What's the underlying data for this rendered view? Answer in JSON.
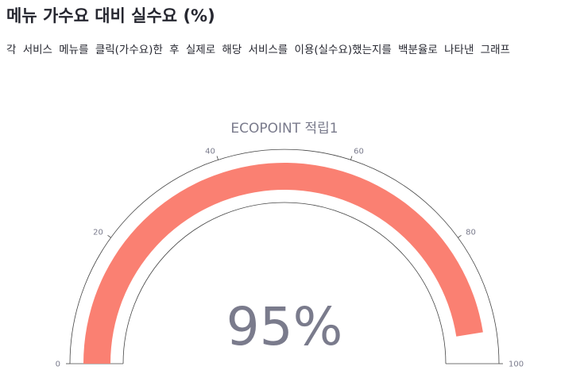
{
  "header": {
    "title": "메뉴 가수요 대비 실수요 (%)",
    "description": "각 서비스 메뉴를 클릭(가수요)한 후 실제로 해당 서비스를 이용(실수요)했는지를 백분율로 나타낸 그래프"
  },
  "chart_data": {
    "type": "gauge",
    "title": "ECOPOINT 적립1",
    "value": 95,
    "value_display": "95%",
    "range": [
      0,
      100
    ],
    "ticks": [
      {
        "value": 0,
        "label": "0"
      },
      {
        "value": 20,
        "label": "20"
      },
      {
        "value": 40,
        "label": "40"
      },
      {
        "value": 60,
        "label": "60"
      },
      {
        "value": 80,
        "label": "80"
      },
      {
        "value": 100,
        "label": "100"
      }
    ],
    "bar_color": "#fa8072",
    "outline_color": "#444444"
  }
}
